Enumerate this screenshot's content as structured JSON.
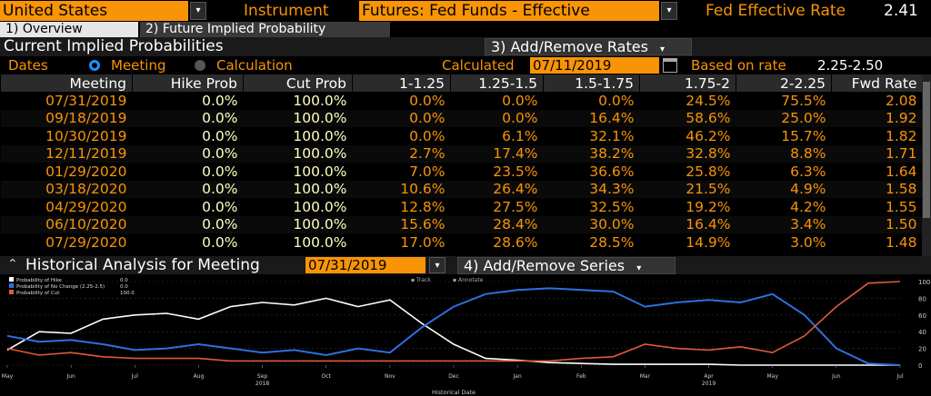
{
  "header": {
    "country": "United States",
    "instrument_label": "Instrument",
    "instrument_value": "Futures: Fed Funds - Effective",
    "rate_label": "Fed Effective Rate",
    "rate_value": "2.41"
  },
  "tabs": [
    {
      "label": "1) Overview",
      "active": true
    },
    {
      "label": "2) Future Implied Probability",
      "active": false
    }
  ],
  "section": {
    "title": "Current Implied Probabilities",
    "add_remove_rates": "3) Add/Remove Rates"
  },
  "dates_row": {
    "dates_label": "Dates",
    "meeting_label": "Meeting",
    "calculation_label": "Calculation",
    "calculated_label": "Calculated",
    "calculated_value": "07/11/2019",
    "based_on_label": "Based on rate",
    "based_on_value": "2.25-2.50"
  },
  "table": {
    "headers": [
      "Meeting",
      "Hike Prob",
      "Cut Prob",
      "1-1.25",
      "1.25-1.5",
      "1.5-1.75",
      "1.75-2",
      "2-2.25",
      "Fwd Rate"
    ],
    "rows": [
      [
        "07/31/2019",
        "0.0%",
        "100.0%",
        "0.0%",
        "0.0%",
        "0.0%",
        "24.5%",
        "75.5%",
        "2.08"
      ],
      [
        "09/18/2019",
        "0.0%",
        "100.0%",
        "0.0%",
        "0.0%",
        "16.4%",
        "58.6%",
        "25.0%",
        "1.92"
      ],
      [
        "10/30/2019",
        "0.0%",
        "100.0%",
        "0.0%",
        "6.1%",
        "32.1%",
        "46.2%",
        "15.7%",
        "1.82"
      ],
      [
        "12/11/2019",
        "0.0%",
        "100.0%",
        "2.7%",
        "17.4%",
        "38.2%",
        "32.8%",
        "8.8%",
        "1.71"
      ],
      [
        "01/29/2020",
        "0.0%",
        "100.0%",
        "7.0%",
        "23.5%",
        "36.6%",
        "25.8%",
        "6.3%",
        "1.64"
      ],
      [
        "03/18/2020",
        "0.0%",
        "100.0%",
        "10.6%",
        "26.4%",
        "34.3%",
        "21.5%",
        "4.9%",
        "1.58"
      ],
      [
        "04/29/2020",
        "0.0%",
        "100.0%",
        "12.8%",
        "27.5%",
        "32.5%",
        "19.2%",
        "4.2%",
        "1.55"
      ],
      [
        "06/10/2020",
        "0.0%",
        "100.0%",
        "15.6%",
        "28.4%",
        "30.0%",
        "16.4%",
        "3.4%",
        "1.50"
      ],
      [
        "07/29/2020",
        "0.0%",
        "100.0%",
        "17.0%",
        "28.6%",
        "28.5%",
        "14.9%",
        "3.0%",
        "1.48"
      ]
    ]
  },
  "historical": {
    "title": "Historical Analysis for Meeting",
    "meeting_value": "07/31/2019",
    "add_remove_series": "4) Add/Remove Series"
  },
  "colors": {
    "orange": "#f89406",
    "hike": "#ffffff",
    "no_change": "#2f6fe0",
    "cut": "#e05a3a"
  },
  "chart_data": {
    "type": "line",
    "legend": [
      {
        "name": "Probability of Hike",
        "value": "0.0"
      },
      {
        "name": "Probability of No Change (2.25-2.5)",
        "value": "0.0"
      },
      {
        "name": "Probability of Cut",
        "value": "100.0"
      }
    ],
    "toolbar": [
      "Track",
      "Annotate"
    ],
    "x_ticks": [
      "May",
      "Jun",
      "Jul",
      "Aug",
      "Sep",
      "Oct",
      "Nov",
      "Dec",
      "Jan",
      "Feb",
      "Mar",
      "Apr",
      "May",
      "Jun",
      "Jul"
    ],
    "year_labels": [
      "2018",
      "2019"
    ],
    "xlabel": "Historical Date",
    "ylim": [
      0,
      100
    ],
    "y_ticks": [
      0,
      20,
      40,
      60,
      80,
      100
    ],
    "x_months": [
      0,
      0.5,
      1,
      1.5,
      2,
      2.5,
      3,
      3.5,
      4,
      4.5,
      5,
      5.5,
      6,
      6.5,
      7,
      7.5,
      8,
      8.5,
      9,
      9.5,
      10,
      10.5,
      11,
      11.5,
      12,
      12.5,
      13,
      13.5,
      14
    ],
    "series": [
      {
        "name": "Probability of Hike",
        "values": [
          18,
          40,
          38,
          55,
          60,
          62,
          55,
          70,
          75,
          72,
          80,
          70,
          78,
          50,
          25,
          8,
          6,
          3,
          2,
          1,
          1,
          1,
          1,
          0,
          0,
          0,
          0,
          0,
          0
        ]
      },
      {
        "name": "Probability of No Change (2.25-2.5)",
        "values": [
          35,
          28,
          30,
          25,
          18,
          20,
          25,
          20,
          15,
          18,
          12,
          20,
          15,
          45,
          70,
          85,
          90,
          92,
          90,
          88,
          70,
          75,
          78,
          75,
          85,
          60,
          20,
          2,
          0
        ]
      },
      {
        "name": "Probability of Cut",
        "values": [
          20,
          12,
          15,
          10,
          8,
          8,
          8,
          5,
          5,
          5,
          5,
          5,
          5,
          5,
          5,
          5,
          5,
          5,
          8,
          10,
          25,
          20,
          18,
          22,
          15,
          35,
          70,
          98,
          100
        ]
      }
    ]
  }
}
